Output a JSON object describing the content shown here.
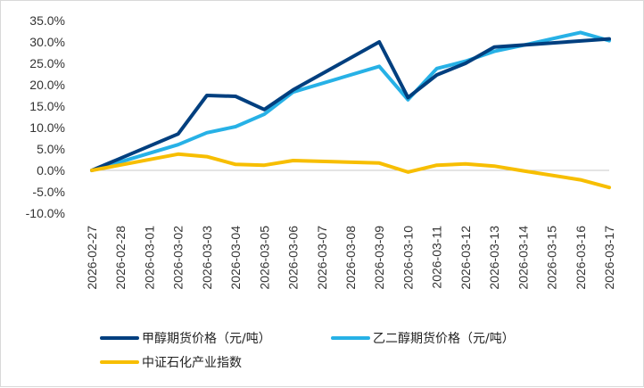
{
  "chart_data": {
    "type": "line",
    "title": "",
    "xlabel": "",
    "ylabel": "",
    "ylim": [
      -10,
      35
    ],
    "yticks": [
      "35.0%",
      "30.0%",
      "25.0%",
      "20.0%",
      "15.0%",
      "10.0%",
      "5.0%",
      "0.0%",
      "-5.0%",
      "-10.0%"
    ],
    "ytick_values": [
      35,
      30,
      25,
      20,
      15,
      10,
      5,
      0,
      -5,
      -10
    ],
    "grid": false,
    "legend_position": "bottom",
    "x": [
      "2026-02-27",
      "2026-02-28",
      "2026-03-01",
      "2026-03-02",
      "2026-03-03",
      "2026-03-04",
      "2026-03-05",
      "2026-03-06",
      "2026-03-07",
      "2026-03-08",
      "2026-03-09",
      "2026-03-10",
      "2026-03-11",
      "2026-03-12",
      "2026-03-13",
      "2026-03-14",
      "2026-03-15",
      "2026-03-16",
      "2026-03-17"
    ],
    "series": [
      {
        "name": "甲醇期货价格（元/吨）",
        "color": "#003f7f",
        "points": [
          [
            0,
            0.0
          ],
          [
            3,
            8.5
          ],
          [
            4,
            17.5
          ],
          [
            5,
            17.3
          ],
          [
            6,
            14.2
          ],
          [
            7,
            18.8
          ],
          [
            10,
            30.0
          ],
          [
            11,
            17.0
          ],
          [
            12,
            22.3
          ],
          [
            13,
            25.0
          ],
          [
            14,
            28.8
          ],
          [
            18,
            30.7
          ]
        ]
      },
      {
        "name": "乙二醇期货价格（元/吨）",
        "color": "#27b1e6",
        "points": [
          [
            0,
            0.0
          ],
          [
            3,
            6.0
          ],
          [
            4,
            8.8
          ],
          [
            5,
            10.2
          ],
          [
            6,
            13.1
          ],
          [
            7,
            18.3
          ],
          [
            10,
            24.3
          ],
          [
            11,
            16.5
          ],
          [
            12,
            23.8
          ],
          [
            13,
            25.5
          ],
          [
            14,
            27.8
          ],
          [
            15,
            29.2
          ],
          [
            17,
            32.2
          ],
          [
            18,
            30.3
          ]
        ]
      },
      {
        "name": "中证石化产业指数",
        "color": "#f7be00",
        "points": [
          [
            0,
            0.0
          ],
          [
            3,
            3.8
          ],
          [
            4,
            3.2
          ],
          [
            5,
            1.4
          ],
          [
            6,
            1.2
          ],
          [
            7,
            2.3
          ],
          [
            10,
            1.7
          ],
          [
            11,
            -0.4
          ],
          [
            12,
            1.2
          ],
          [
            13,
            1.5
          ],
          [
            14,
            1.0
          ],
          [
            15,
            -0.1
          ],
          [
            17,
            -2.2
          ],
          [
            18,
            -4.0
          ]
        ]
      }
    ]
  }
}
